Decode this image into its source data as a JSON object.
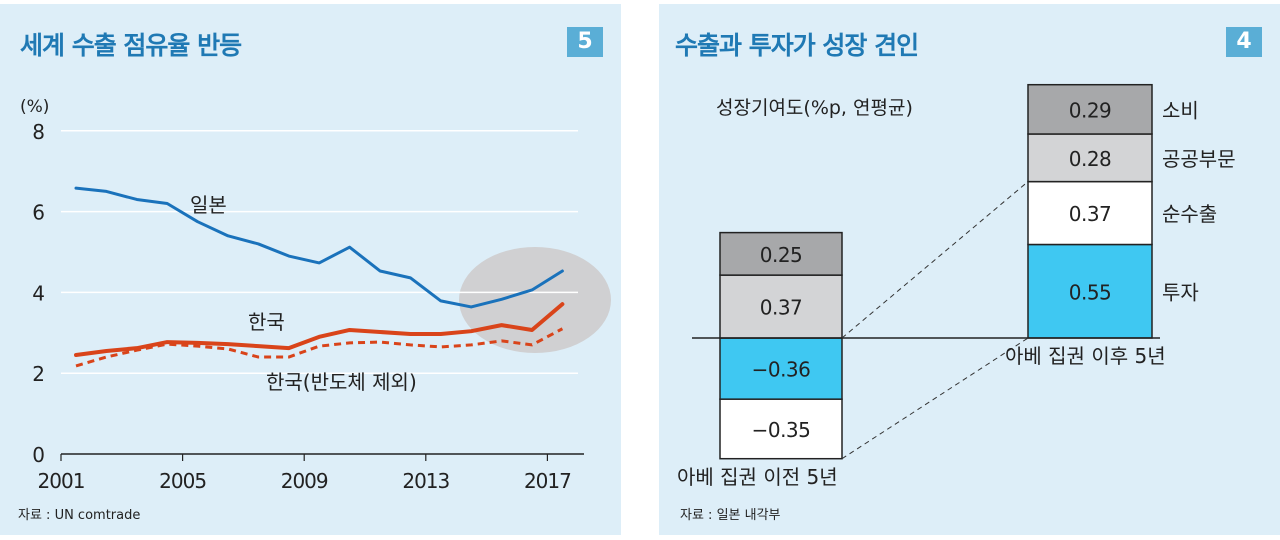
{
  "chart_data": [
    {
      "type": "line",
      "title": "세계 수출 점유율 반등",
      "badge": "5",
      "ylabel": "(%)",
      "xlabel": "",
      "ylim": [
        0,
        8
      ],
      "yticks": [
        "0",
        "2",
        "4",
        "6",
        "8"
      ],
      "ytick_values": [
        0,
        2,
        4,
        6,
        8
      ],
      "xticks": [
        "2001",
        "2005",
        "2009",
        "2013",
        "2017"
      ],
      "xtick_values": [
        2001,
        2005,
        2009,
        2013,
        2017
      ],
      "grid": true,
      "x": [
        2001,
        2002,
        2003,
        2004,
        2005,
        2006,
        2007,
        2008,
        2009,
        2010,
        2011,
        2012,
        2013,
        2014,
        2015,
        2016,
        2017
      ],
      "series": [
        {
          "name": "일본",
          "color": "#1a72bb",
          "style": "solid",
          "values": [
            6.58,
            6.5,
            6.3,
            6.2,
            5.75,
            5.4,
            5.2,
            4.9,
            4.73,
            5.12,
            4.53,
            4.36,
            3.79,
            3.64,
            3.83,
            4.06,
            4.53
          ]
        },
        {
          "name": "한국",
          "color": "#d9441a",
          "style": "solid",
          "values": [
            2.45,
            2.55,
            2.62,
            2.77,
            2.75,
            2.72,
            2.67,
            2.62,
            2.9,
            3.07,
            3.02,
            2.97,
            2.97,
            3.04,
            3.19,
            3.07,
            3.71
          ]
        },
        {
          "name": "한국(반도체 제외)",
          "color": "#d9441a",
          "style": "dashed",
          "values": [
            2.18,
            2.4,
            2.57,
            2.72,
            2.67,
            2.6,
            2.4,
            2.4,
            2.67,
            2.75,
            2.77,
            2.7,
            2.65,
            2.7,
            2.8,
            2.7,
            3.1
          ]
        }
      ],
      "annotations": [
        "일본",
        "한국",
        "한국(반도체 제외)",
        "highlight ellipse over 2015–2017"
      ],
      "source": "자료 : UN comtrade"
    },
    {
      "type": "bar",
      "stacked": true,
      "title": "수출과 투자가 성장 견인",
      "badge": "4",
      "ylabel": "성장기여도(%p, 연평균)",
      "categories": [
        "아베 집권 이전 5년",
        "아베 집권 이후 5년"
      ],
      "series": [
        {
          "name": "투자",
          "color": "#3fc8f2",
          "values": [
            -0.36,
            0.55
          ],
          "labels": [
            "−0.36",
            "0.55"
          ]
        },
        {
          "name": "순수출",
          "color": "#ffffff",
          "values": [
            -0.35,
            0.37
          ],
          "labels": [
            "−0.35",
            "0.37"
          ]
        },
        {
          "name": "공공부문",
          "color": "#d3d4d6",
          "values": [
            0.37,
            0.28
          ],
          "labels": [
            "0.37",
            "0.28"
          ]
        },
        {
          "name": "소비",
          "color": "#a7a8aa",
          "values": [
            0.25,
            0.29
          ],
          "labels": [
            "0.25",
            "0.29"
          ]
        }
      ],
      "legend": "right of second bar",
      "source": "자료 : 일본 내각부"
    }
  ]
}
